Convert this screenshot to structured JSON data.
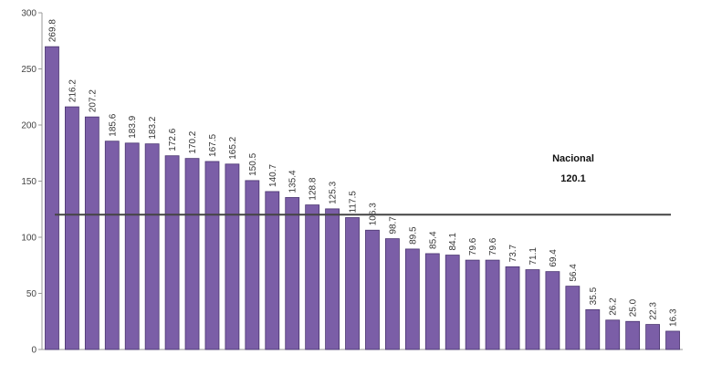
{
  "chart_data": {
    "type": "bar",
    "categories": [
      null,
      null,
      null,
      null,
      null,
      null,
      null,
      null,
      null,
      null,
      null,
      null,
      null,
      null,
      null,
      null,
      null,
      null,
      null,
      null,
      null,
      null,
      null,
      null,
      null,
      null,
      null,
      null,
      null,
      null,
      null,
      null
    ],
    "values": [
      269.8,
      216.2,
      207.2,
      185.6,
      183.9,
      183.2,
      172.6,
      170.2,
      167.5,
      165.2,
      150.5,
      140.7,
      135.4,
      128.8,
      125.3,
      117.5,
      106.3,
      98.7,
      89.5,
      85.4,
      84.1,
      79.6,
      79.6,
      73.7,
      71.1,
      69.4,
      56.4,
      35.5,
      26.2,
      25.0,
      22.3,
      16.3
    ],
    "value_labels": [
      "269.8",
      "216.2",
      "207.2",
      "185.6",
      "183.9",
      "183.2",
      "172.6",
      "170.2",
      "167.5",
      "165.2",
      "150.5",
      "140.7",
      "135.4",
      "128.8",
      "125.3",
      "117.5",
      "106.3",
      "98.7",
      "89.5",
      "85.4",
      "84.1",
      "79.6",
      "79.6",
      "73.7",
      "71.1",
      "69.4",
      "56.4",
      "35.5",
      "26.2",
      "25.0",
      "22.3",
      "16.3"
    ],
    "color": "#7b5ea7",
    "ylim": [
      0,
      300
    ],
    "yticks": [
      0,
      50,
      100,
      150,
      200,
      250,
      300
    ],
    "reference": {
      "label": "Nacional",
      "value": 120.1
    }
  }
}
